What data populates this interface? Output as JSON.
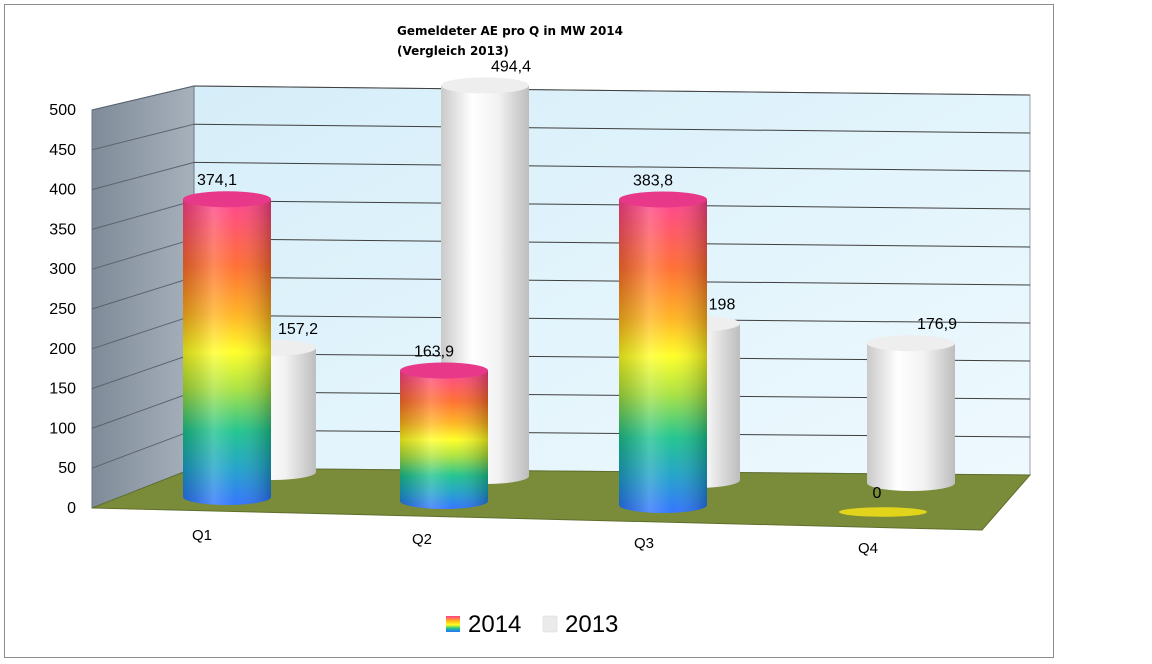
{
  "chart_data": {
    "type": "bar",
    "title_lines": [
      "Gemeldeter AE  pro Q in MW 2014",
      "(Vergleich 2013)"
    ],
    "categories": [
      "Q1",
      "Q2",
      "Q3",
      "Q4"
    ],
    "series": [
      {
        "name": "2014",
        "values": [
          374.1,
          163.9,
          383.8,
          0
        ],
        "labels": [
          "374,1",
          "163,9",
          "383,8",
          "0"
        ]
      },
      {
        "name": "2013",
        "values": [
          157.2,
          494.4,
          198,
          176.9
        ],
        "labels": [
          "157,2",
          "494,4",
          "198",
          "176,9"
        ]
      }
    ],
    "yticks": [
      "0",
      "50",
      "100",
      "150",
      "200",
      "250",
      "300",
      "350",
      "400",
      "450",
      "500"
    ],
    "ylim": [
      0,
      500
    ],
    "grid": true,
    "legend_position": "bottom",
    "style": "3d-cylinder",
    "colors": {
      "series_2014": [
        "#ff3d8c",
        "#ff6a2a",
        "#ffb21a",
        "#ffff1e",
        "#a8e23a",
        "#19c28c",
        "#1aa0c8",
        "#2a6fff"
      ],
      "series_2013": [
        "#ffffff",
        "#e0e0e0"
      ],
      "floor": "#7a8c3a",
      "back_wall": "#e6f6fd",
      "side_wall": "#8a96a4"
    }
  }
}
